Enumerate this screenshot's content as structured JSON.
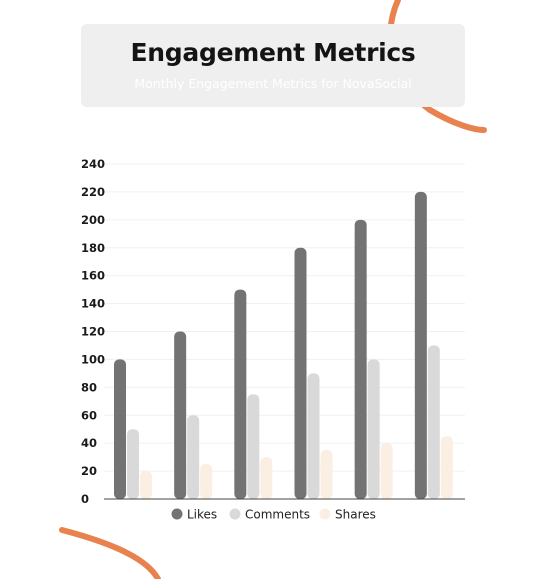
{
  "header": {
    "title": "Engagement Metrics",
    "subtitle": "Monthly Engagement Metrics for NovaSocial"
  },
  "colors": {
    "accent": "#e8834f",
    "title_box": "#efefef",
    "likes": "#737373",
    "comments": "#d9d9d9",
    "shares": "#fbeee2"
  },
  "chart_data": {
    "type": "bar",
    "categories": [
      "",
      "",
      "",
      "",
      "",
      ""
    ],
    "series": [
      {
        "name": "Likes",
        "values": [
          100,
          120,
          150,
          180,
          200,
          220
        ]
      },
      {
        "name": "Comments",
        "values": [
          50,
          60,
          75,
          90,
          100,
          110
        ]
      },
      {
        "name": "Shares",
        "values": [
          20,
          25,
          30,
          35,
          40,
          45
        ]
      }
    ],
    "ylim": [
      0,
      240
    ],
    "yticks": [
      0,
      20,
      40,
      60,
      80,
      100,
      120,
      140,
      160,
      180,
      200,
      220,
      240
    ],
    "grid": true,
    "legend_position": "bottom-center",
    "title": "Engagement Metrics",
    "subtitle": "Monthly Engagement Metrics for NovaSocial"
  }
}
